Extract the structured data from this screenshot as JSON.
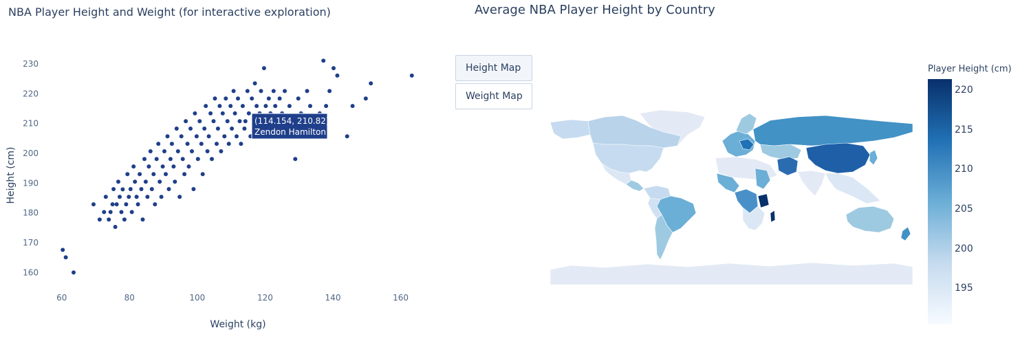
{
  "chart_data": [
    {
      "type": "scatter",
      "title": "NBA Player Height and Weight (for interactive exploration)",
      "xlabel": "Weight (kg)",
      "ylabel": "Height (cm)",
      "xlim": [
        56,
        168
      ],
      "ylim": [
        155,
        233
      ],
      "xticks": [
        60,
        80,
        100,
        120,
        140,
        160
      ],
      "yticks": [
        160,
        170,
        180,
        190,
        200,
        210,
        220,
        230
      ],
      "grid": false,
      "marker_color": "#1f3f8a",
      "points": [
        [
          60.3,
          167.6
        ],
        [
          61.2,
          165.1
        ],
        [
          63.5,
          160.0
        ],
        [
          69.4,
          182.9
        ],
        [
          71.2,
          177.8
        ],
        [
          72.5,
          180.3
        ],
        [
          73.0,
          185.4
        ],
        [
          73.9,
          177.8
        ],
        [
          74.4,
          180.3
        ],
        [
          75.0,
          182.9
        ],
        [
          75.3,
          188.0
        ],
        [
          75.8,
          175.3
        ],
        [
          76.2,
          182.9
        ],
        [
          76.7,
          190.5
        ],
        [
          77.1,
          185.4
        ],
        [
          77.6,
          180.3
        ],
        [
          78.0,
          187.9
        ],
        [
          78.5,
          177.8
        ],
        [
          79.0,
          182.9
        ],
        [
          79.4,
          193.0
        ],
        [
          79.8,
          185.4
        ],
        [
          80.3,
          188.0
        ],
        [
          80.7,
          180.3
        ],
        [
          81.2,
          195.6
        ],
        [
          81.6,
          190.5
        ],
        [
          82.1,
          185.4
        ],
        [
          82.5,
          182.9
        ],
        [
          83.0,
          193.0
        ],
        [
          83.5,
          188.0
        ],
        [
          83.9,
          177.8
        ],
        [
          84.4,
          198.1
        ],
        [
          84.8,
          190.5
        ],
        [
          85.3,
          185.4
        ],
        [
          85.7,
          195.6
        ],
        [
          86.2,
          200.7
        ],
        [
          86.6,
          188.0
        ],
        [
          87.1,
          193.0
        ],
        [
          87.5,
          182.9
        ],
        [
          88.0,
          198.1
        ],
        [
          88.5,
          203.2
        ],
        [
          88.9,
          190.5
        ],
        [
          89.4,
          185.4
        ],
        [
          89.8,
          195.6
        ],
        [
          90.3,
          200.7
        ],
        [
          90.7,
          193.0
        ],
        [
          91.2,
          205.7
        ],
        [
          91.6,
          188.0
        ],
        [
          92.1,
          198.1
        ],
        [
          92.5,
          203.2
        ],
        [
          93.0,
          195.6
        ],
        [
          93.4,
          190.5
        ],
        [
          93.9,
          208.3
        ],
        [
          94.3,
          200.7
        ],
        [
          94.8,
          185.4
        ],
        [
          95.3,
          205.7
        ],
        [
          95.7,
          198.1
        ],
        [
          96.2,
          193.0
        ],
        [
          96.6,
          210.8
        ],
        [
          97.1,
          203.2
        ],
        [
          97.5,
          195.6
        ],
        [
          98.0,
          208.3
        ],
        [
          98.4,
          200.7
        ],
        [
          98.9,
          188.0
        ],
        [
          99.3,
          213.4
        ],
        [
          99.8,
          205.7
        ],
        [
          100.2,
          198.1
        ],
        [
          100.7,
          210.8
        ],
        [
          101.2,
          203.2
        ],
        [
          101.6,
          193.0
        ],
        [
          102.1,
          208.3
        ],
        [
          102.5,
          215.9
        ],
        [
          103.0,
          200.7
        ],
        [
          103.4,
          205.7
        ],
        [
          103.9,
          213.4
        ],
        [
          104.3,
          198.1
        ],
        [
          104.8,
          210.8
        ],
        [
          105.2,
          218.4
        ],
        [
          105.7,
          203.2
        ],
        [
          106.1,
          208.3
        ],
        [
          106.6,
          215.9
        ],
        [
          107.0,
          200.7
        ],
        [
          107.5,
          213.4
        ],
        [
          108.0,
          205.7
        ],
        [
          108.4,
          218.4
        ],
        [
          108.9,
          210.8
        ],
        [
          109.3,
          203.2
        ],
        [
          109.8,
          215.9
        ],
        [
          110.2,
          208.3
        ],
        [
          110.7,
          220.9
        ],
        [
          111.1,
          213.4
        ],
        [
          111.6,
          205.7
        ],
        [
          112.0,
          218.4
        ],
        [
          112.5,
          210.8
        ],
        [
          112.9,
          203.2
        ],
        [
          113.4,
          215.9
        ],
        [
          113.9,
          208.3
        ],
        [
          114.2,
          210.8
        ],
        [
          114.8,
          220.9
        ],
        [
          115.2,
          213.4
        ],
        [
          115.7,
          205.7
        ],
        [
          116.1,
          218.4
        ],
        [
          116.6,
          210.8
        ],
        [
          117.0,
          223.5
        ],
        [
          117.5,
          215.9
        ],
        [
          117.9,
          208.3
        ],
        [
          118.4,
          213.4
        ],
        [
          118.8,
          220.9
        ],
        [
          119.3,
          210.8
        ],
        [
          119.7,
          228.6
        ],
        [
          120.2,
          215.9
        ],
        [
          120.7,
          208.3
        ],
        [
          121.1,
          218.4
        ],
        [
          121.6,
          213.4
        ],
        [
          122.0,
          210.8
        ],
        [
          122.5,
          220.9
        ],
        [
          123.0,
          215.9
        ],
        [
          123.5,
          205.7
        ],
        [
          124.3,
          218.4
        ],
        [
          125.0,
          213.4
        ],
        [
          125.8,
          220.9
        ],
        [
          126.5,
          210.8
        ],
        [
          127.2,
          215.9
        ],
        [
          128.0,
          208.3
        ],
        [
          128.9,
          198.1
        ],
        [
          129.8,
          218.4
        ],
        [
          130.6,
          213.4
        ],
        [
          131.5,
          210.8
        ],
        [
          132.4,
          220.9
        ],
        [
          133.3,
          215.9
        ],
        [
          134.6,
          210.8
        ],
        [
          136.1,
          213.4
        ],
        [
          137.2,
          231.1
        ],
        [
          138.0,
          215.9
        ],
        [
          139.0,
          220.9
        ],
        [
          140.2,
          228.6
        ],
        [
          141.3,
          226.1
        ],
        [
          144.2,
          205.7
        ],
        [
          145.8,
          215.9
        ],
        [
          149.7,
          218.4
        ],
        [
          151.2,
          223.5
        ],
        [
          163.3,
          226.1
        ]
      ],
      "hover": {
        "coords": "(114.154, 210.82)",
        "name": "Zendon Hamilton"
      }
    },
    {
      "type": "choropleth",
      "title": "Average NBA Player Height by Country",
      "buttons": [
        {
          "label": "Height Map",
          "active": true
        },
        {
          "label": "Weight Map",
          "active": false
        }
      ],
      "colorbar": {
        "title": "Player Height (cm)",
        "range": [
          190.5,
          221.5
        ],
        "ticks": [
          195,
          200,
          205,
          210,
          215,
          220
        ],
        "colors": [
          "#f7fbff",
          "#c6dbef",
          "#6baed6",
          "#2171b5",
          "#08306b"
        ]
      }
    }
  ]
}
